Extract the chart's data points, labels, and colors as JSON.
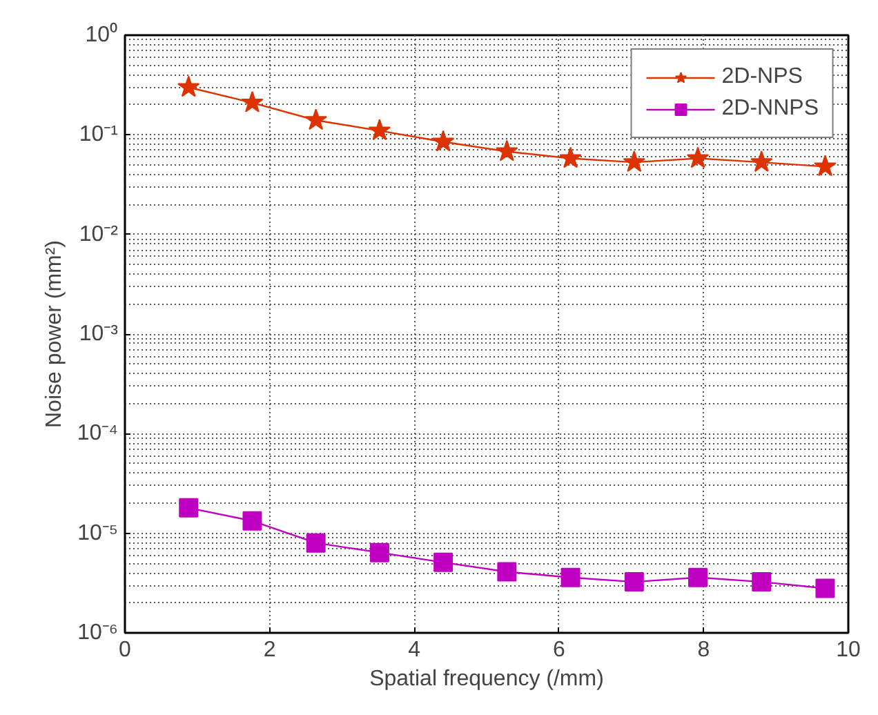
{
  "chart_data": {
    "type": "line",
    "xlabel": "Spatial frequency (/mm)",
    "ylabel": "Noise power (mm²)",
    "log": "y",
    "grid": true,
    "legend": "top right",
    "line_style": "solid",
    "xlim": [
      0,
      10
    ],
    "xticks": [
      0,
      2,
      4,
      6,
      8,
      10
    ],
    "ylim": [
      1e-06,
      1
    ],
    "yticks": [
      {
        "value": 1e-06,
        "label": "10⁻⁶"
      },
      {
        "value": 1e-05,
        "label": "10⁻⁵"
      },
      {
        "value": 0.0001,
        "label": "10⁻⁴"
      },
      {
        "value": 0.001,
        "label": "10⁻³"
      },
      {
        "value": 0.01,
        "label": "10⁻²"
      },
      {
        "value": 0.1,
        "label": "10⁻¹"
      },
      {
        "value": 1,
        "label": "10⁰"
      }
    ],
    "x": [
      0.88,
      1.76,
      2.64,
      3.52,
      4.4,
      5.28,
      6.16,
      7.04,
      7.92,
      8.8,
      9.68
    ],
    "series": [
      {
        "name": "2D-NPS",
        "color": "#dd3300",
        "marker": "star",
        "values": [
          0.3,
          0.21,
          0.14,
          0.11,
          0.085,
          0.068,
          0.058,
          0.053,
          0.058,
          0.053,
          0.048
        ]
      },
      {
        "name": "2D-NNPS",
        "color": "#c000c0",
        "marker": "square",
        "values": [
          1.8e-05,
          1.33e-05,
          8e-06,
          6.4e-06,
          5.1e-06,
          4.1e-06,
          3.6e-06,
          3.25e-06,
          3.6e-06,
          3.25e-06,
          2.8e-06
        ]
      }
    ]
  }
}
